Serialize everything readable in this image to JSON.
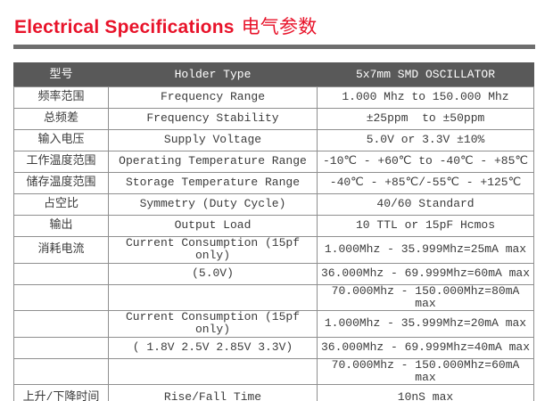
{
  "title": {
    "en": "Electrical Specifications",
    "zh": "电气参数"
  },
  "colors": {
    "accent_red": "#e8132a",
    "header_bg": "#595959",
    "header_text": "#ffffff",
    "border": "#8f8f8f",
    "rule": "#6e6e6e",
    "body_text": "#3b3b3b"
  },
  "table": {
    "headers": [
      "型号",
      "Holder Type",
      "5x7mm SMD OSCILLATOR"
    ],
    "rows": [
      {
        "model": "频率范围",
        "holder": "Frequency Range",
        "spec": "1.000 Mhz to 150.000 Mhz"
      },
      {
        "model": "总频差",
        "holder": "Frequency Stability",
        "spec": "±25ppm  to ±50ppm"
      },
      {
        "model": "输入电压",
        "holder": "Supply Voltage",
        "spec": "5.0V or 3.3V ±10%"
      },
      {
        "model": "工作温度范围",
        "holder": "Operating Temperature Range",
        "spec": "-10℃ - +60℃ to -40℃ - +85℃"
      },
      {
        "model": "储存温度范围",
        "holder": "Storage Temperature Range",
        "spec": "-40℃ - +85℃/-55℃ - +125℃"
      },
      {
        "model": "占空比",
        "holder": "Symmetry (Duty Cycle)",
        "spec": "40/60 Standard"
      },
      {
        "model": "输出",
        "holder": "Output Load",
        "spec": "10 TTL or 15pF Hcmos"
      },
      {
        "model": "消耗电流",
        "holder": "Current Consumption (15pf only)",
        "spec": "1.000Mhz - 35.999Mhz=25mA max"
      },
      {
        "model": "",
        "holder": "(5.0V)",
        "spec": "36.000Mhz - 69.999Mhz=60mA max"
      },
      {
        "model": "",
        "holder": "",
        "spec": "70.000Mhz - 150.000Mhz=80mA max"
      },
      {
        "model": "",
        "holder": "Current Consumption (15pf only)",
        "spec": "1.000Mhz - 35.999Mhz=20mA max"
      },
      {
        "model": "",
        "holder": "( 1.8V 2.5V 2.85V 3.3V)",
        "spec": "36.000Mhz - 69.999Mhz=40mA max"
      },
      {
        "model": "",
        "holder": "",
        "spec": "70.000Mhz - 150.000Mhz=60mA max"
      },
      {
        "model": "上升/下降时间",
        "holder": "Rise/Fall Time",
        "spec": "10nS max"
      }
    ]
  }
}
